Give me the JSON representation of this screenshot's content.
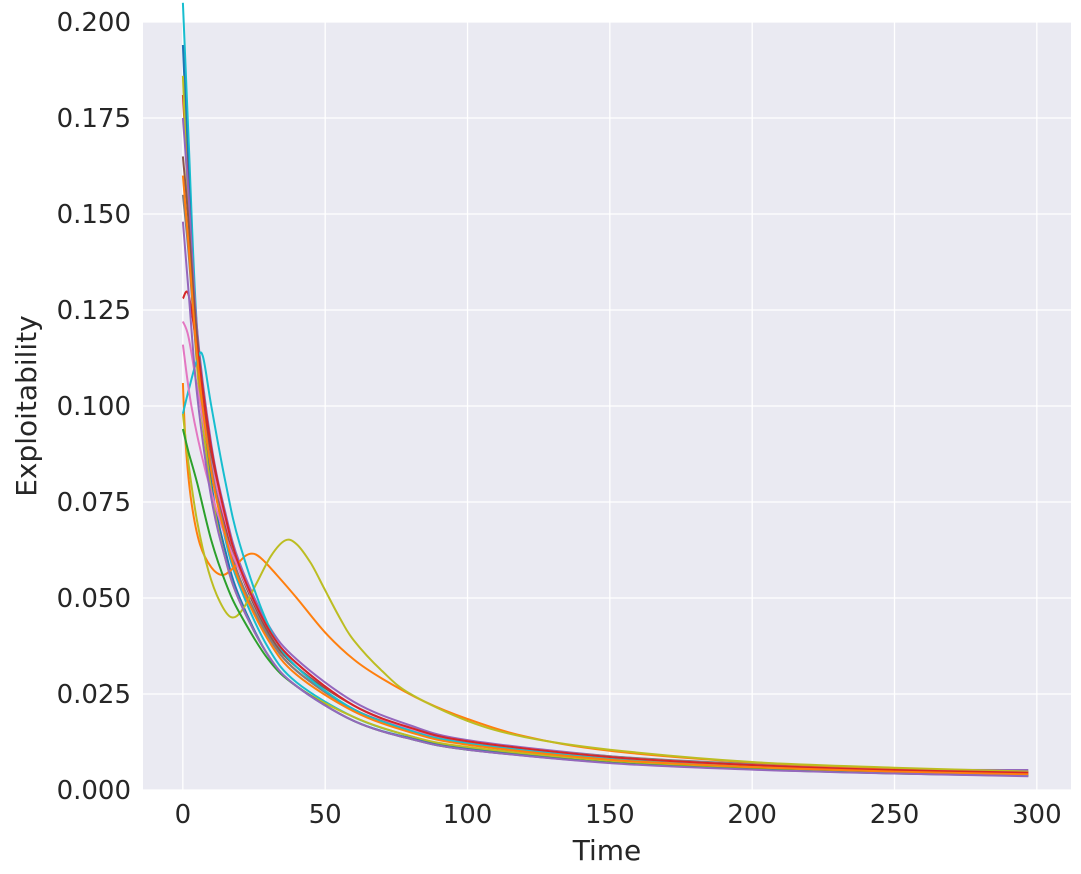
{
  "chart_data": {
    "type": "line",
    "title": "",
    "xlabel": "Time",
    "ylabel": "Exploitability",
    "xlim": [
      -14,
      312
    ],
    "ylim": [
      0,
      0.2
    ],
    "xticks": [
      0,
      50,
      100,
      150,
      200,
      250,
      300
    ],
    "yticks": [
      0,
      0.025,
      0.05,
      0.075,
      0.1,
      0.125,
      0.15,
      0.175,
      0.2
    ],
    "xtick_labels": [
      "0",
      "50",
      "100",
      "150",
      "200",
      "250",
      "300"
    ],
    "ytick_labels": [
      "0.000",
      "0.025",
      "0.050",
      "0.075",
      "0.100",
      "0.125",
      "0.150",
      "0.175",
      "0.200"
    ],
    "grid": true,
    "legend": "none",
    "background_color": "#eaeaf2",
    "series": [
      {
        "color": "#17becf",
        "values": [
          [
            0,
            0.205
          ],
          [
            2,
            0.17
          ],
          [
            5,
            0.12
          ],
          [
            10,
            0.085
          ],
          [
            15,
            0.065
          ],
          [
            20,
            0.053
          ],
          [
            30,
            0.037
          ],
          [
            40,
            0.028
          ],
          [
            60,
            0.019
          ],
          [
            80,
            0.014
          ],
          [
            100,
            0.011
          ],
          [
            150,
            0.0075
          ],
          [
            200,
            0.0057
          ],
          [
            250,
            0.0046
          ],
          [
            297,
            0.0039
          ]
        ]
      },
      {
        "color": "#1f77b4",
        "values": [
          [
            0,
            0.194
          ],
          [
            2,
            0.16
          ],
          [
            5,
            0.115
          ],
          [
            10,
            0.08
          ],
          [
            15,
            0.062
          ],
          [
            20,
            0.05
          ],
          [
            30,
            0.035
          ],
          [
            40,
            0.027
          ],
          [
            60,
            0.018
          ],
          [
            80,
            0.0135
          ],
          [
            100,
            0.0108
          ],
          [
            150,
            0.0073
          ],
          [
            200,
            0.0056
          ],
          [
            250,
            0.0045
          ],
          [
            297,
            0.0038
          ]
        ]
      },
      {
        "color": "#d62728",
        "values": [
          [
            0,
            0.181
          ],
          [
            2,
            0.155
          ],
          [
            5,
            0.118
          ],
          [
            10,
            0.086
          ],
          [
            15,
            0.068
          ],
          [
            20,
            0.055
          ],
          [
            30,
            0.04
          ],
          [
            40,
            0.031
          ],
          [
            60,
            0.021
          ],
          [
            80,
            0.0155
          ],
          [
            100,
            0.0122
          ],
          [
            150,
            0.0082
          ],
          [
            200,
            0.0062
          ],
          [
            250,
            0.005
          ],
          [
            297,
            0.0042
          ]
        ]
      },
      {
        "color": "#bcbd22",
        "values": [
          [
            0,
            0.186
          ],
          [
            2,
            0.15
          ],
          [
            5,
            0.11
          ],
          [
            10,
            0.078
          ],
          [
            15,
            0.06
          ],
          [
            20,
            0.049
          ],
          [
            30,
            0.035
          ],
          [
            40,
            0.027
          ],
          [
            60,
            0.019
          ],
          [
            80,
            0.014
          ],
          [
            100,
            0.0112
          ],
          [
            150,
            0.0076
          ],
          [
            200,
            0.0058
          ],
          [
            250,
            0.0047
          ],
          [
            297,
            0.004
          ]
        ]
      },
      {
        "color": "#9467bd",
        "values": [
          [
            0,
            0.175
          ],
          [
            2,
            0.155
          ],
          [
            5,
            0.12
          ],
          [
            10,
            0.09
          ],
          [
            15,
            0.072
          ],
          [
            20,
            0.059
          ],
          [
            30,
            0.043
          ],
          [
            40,
            0.034
          ],
          [
            60,
            0.023
          ],
          [
            80,
            0.0168
          ],
          [
            100,
            0.013
          ],
          [
            150,
            0.0088
          ],
          [
            200,
            0.0066
          ],
          [
            250,
            0.0054
          ],
          [
            297,
            0.0052
          ]
        ]
      },
      {
        "color": "#8c564b",
        "values": [
          [
            0,
            0.165
          ],
          [
            2,
            0.148
          ],
          [
            5,
            0.118
          ],
          [
            10,
            0.088
          ],
          [
            15,
            0.07
          ],
          [
            20,
            0.057
          ],
          [
            30,
            0.041
          ],
          [
            40,
            0.032
          ],
          [
            60,
            0.022
          ],
          [
            80,
            0.016
          ],
          [
            100,
            0.0126
          ],
          [
            150,
            0.0085
          ],
          [
            200,
            0.0064
          ],
          [
            250,
            0.0052
          ],
          [
            297,
            0.0044
          ]
        ]
      },
      {
        "color": "#e377c2",
        "values": [
          [
            0,
            0.122
          ],
          [
            2,
            0.118
          ],
          [
            5,
            0.105
          ],
          [
            10,
            0.085
          ],
          [
            15,
            0.07
          ],
          [
            20,
            0.058
          ],
          [
            30,
            0.042
          ],
          [
            40,
            0.033
          ],
          [
            60,
            0.022
          ],
          [
            80,
            0.016
          ],
          [
            100,
            0.0125
          ],
          [
            150,
            0.0084
          ],
          [
            200,
            0.0064
          ],
          [
            250,
            0.0051
          ],
          [
            297,
            0.0044
          ]
        ]
      },
      {
        "color": "#7f7f7f",
        "values": [
          [
            0,
            0.155
          ],
          [
            2,
            0.14
          ],
          [
            5,
            0.112
          ],
          [
            10,
            0.084
          ],
          [
            15,
            0.067
          ],
          [
            20,
            0.055
          ],
          [
            30,
            0.04
          ],
          [
            40,
            0.031
          ],
          [
            60,
            0.021
          ],
          [
            80,
            0.0158
          ],
          [
            100,
            0.0125
          ],
          [
            150,
            0.0088
          ],
          [
            200,
            0.0068
          ],
          [
            250,
            0.0056
          ],
          [
            297,
            0.0048
          ]
        ]
      },
      {
        "color": "#ff7f0e",
        "values": [
          [
            0,
            0.106
          ],
          [
            1,
            0.09
          ],
          [
            3,
            0.075
          ],
          [
            6,
            0.064
          ],
          [
            10,
            0.058
          ],
          [
            14,
            0.056
          ],
          [
            18,
            0.058
          ],
          [
            22,
            0.061
          ],
          [
            25,
            0.0615
          ],
          [
            28,
            0.06
          ],
          [
            33,
            0.056
          ],
          [
            40,
            0.05
          ],
          [
            50,
            0.041
          ],
          [
            60,
            0.034
          ],
          [
            70,
            0.029
          ],
          [
            85,
            0.023
          ],
          [
            100,
            0.0185
          ],
          [
            120,
            0.014
          ],
          [
            150,
            0.0102
          ],
          [
            200,
            0.0072
          ],
          [
            250,
            0.0056
          ],
          [
            297,
            0.0046
          ]
        ]
      },
      {
        "color": "#bcbd22",
        "values": [
          [
            0,
            0.098
          ],
          [
            2,
            0.085
          ],
          [
            5,
            0.07
          ],
          [
            9,
            0.057
          ],
          [
            13,
            0.049
          ],
          [
            17,
            0.045
          ],
          [
            21,
            0.047
          ],
          [
            26,
            0.054
          ],
          [
            31,
            0.061
          ],
          [
            36,
            0.065
          ],
          [
            40,
            0.064
          ],
          [
            45,
            0.059
          ],
          [
            50,
            0.052
          ],
          [
            55,
            0.045
          ],
          [
            60,
            0.039
          ],
          [
            70,
            0.031
          ],
          [
            80,
            0.025
          ],
          [
            100,
            0.018
          ],
          [
            120,
            0.0138
          ],
          [
            150,
            0.0105
          ],
          [
            200,
            0.0073
          ],
          [
            250,
            0.0058
          ],
          [
            297,
            0.0048
          ]
        ]
      },
      {
        "color": "#2ca02c",
        "values": [
          [
            0,
            0.094
          ],
          [
            2,
            0.088
          ],
          [
            5,
            0.08
          ],
          [
            10,
            0.065
          ],
          [
            15,
            0.054
          ],
          [
            20,
            0.046
          ],
          [
            30,
            0.034
          ],
          [
            40,
            0.027
          ],
          [
            60,
            0.018
          ],
          [
            80,
            0.0133
          ],
          [
            100,
            0.0105
          ],
          [
            150,
            0.0071
          ],
          [
            200,
            0.0054
          ],
          [
            250,
            0.0043
          ],
          [
            297,
            0.0037
          ]
        ]
      },
      {
        "color": "#17becf",
        "values": [
          [
            0,
            0.098
          ],
          [
            2,
            0.104
          ],
          [
            5,
            0.112
          ],
          [
            7,
            0.113
          ],
          [
            10,
            0.1
          ],
          [
            15,
            0.08
          ],
          [
            20,
            0.064
          ],
          [
            30,
            0.043
          ],
          [
            40,
            0.032
          ],
          [
            60,
            0.021
          ],
          [
            80,
            0.0155
          ],
          [
            100,
            0.0122
          ],
          [
            150,
            0.0082
          ],
          [
            200,
            0.0061
          ],
          [
            250,
            0.0049
          ],
          [
            297,
            0.004
          ]
        ]
      },
      {
        "color": "#e377c2",
        "values": [
          [
            0,
            0.116
          ],
          [
            3,
            0.1
          ],
          [
            8,
            0.083
          ],
          [
            14,
            0.068
          ],
          [
            20,
            0.057
          ],
          [
            30,
            0.042
          ],
          [
            40,
            0.033
          ],
          [
            60,
            0.022
          ],
          [
            80,
            0.016
          ],
          [
            100,
            0.0127
          ],
          [
            150,
            0.0086
          ],
          [
            200,
            0.0065
          ],
          [
            250,
            0.0052
          ],
          [
            297,
            0.0045
          ]
        ]
      },
      {
        "color": "#d62728",
        "values": [
          [
            0,
            0.128
          ],
          [
            2,
            0.129
          ],
          [
            5,
            0.115
          ],
          [
            10,
            0.089
          ],
          [
            15,
            0.071
          ],
          [
            20,
            0.058
          ],
          [
            30,
            0.042
          ],
          [
            40,
            0.033
          ],
          [
            60,
            0.022
          ],
          [
            80,
            0.0162
          ],
          [
            100,
            0.0127
          ],
          [
            150,
            0.0086
          ],
          [
            200,
            0.0065
          ],
          [
            250,
            0.0052
          ],
          [
            297,
            0.0045
          ]
        ]
      },
      {
        "color": "#ff7f0e",
        "values": [
          [
            0,
            0.16
          ],
          [
            2,
            0.142
          ],
          [
            5,
            0.113
          ],
          [
            10,
            0.083
          ],
          [
            15,
            0.066
          ],
          [
            20,
            0.054
          ],
          [
            30,
            0.039
          ],
          [
            40,
            0.03
          ],
          [
            60,
            0.0205
          ],
          [
            80,
            0.015
          ],
          [
            100,
            0.0118
          ],
          [
            150,
            0.0079
          ],
          [
            200,
            0.006
          ],
          [
            250,
            0.0048
          ],
          [
            297,
            0.0041
          ]
        ]
      },
      {
        "color": "#9467bd",
        "values": [
          [
            0,
            0.148
          ],
          [
            2,
            0.13
          ],
          [
            5,
            0.103
          ],
          [
            10,
            0.076
          ],
          [
            15,
            0.06
          ],
          [
            20,
            0.049
          ],
          [
            30,
            0.035
          ],
          [
            40,
            0.027
          ],
          [
            60,
            0.018
          ],
          [
            80,
            0.0133
          ],
          [
            100,
            0.0105
          ],
          [
            150,
            0.007
          ],
          [
            200,
            0.0053
          ],
          [
            250,
            0.0043
          ],
          [
            297,
            0.0036
          ]
        ]
      }
    ]
  }
}
